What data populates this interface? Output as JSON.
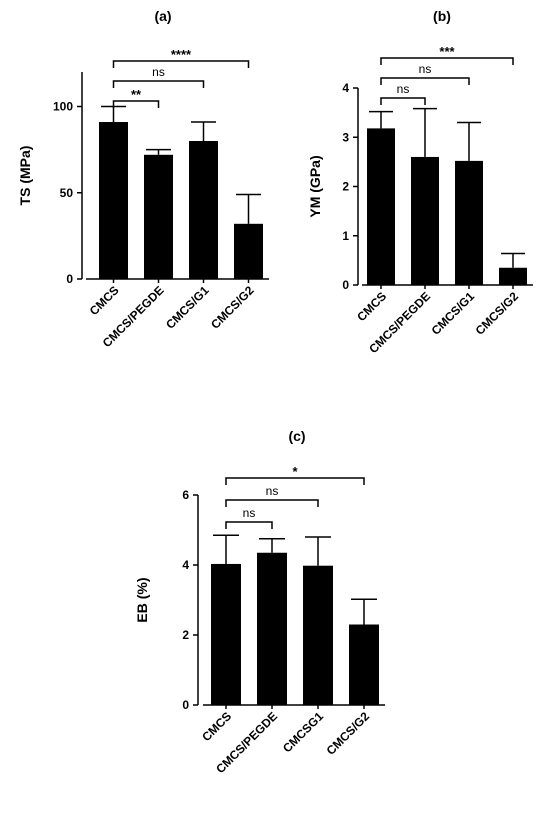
{
  "chart_data": [
    {
      "type": "bar",
      "panel": "(a)",
      "ylabel": "TS (MPa)",
      "ylim": [
        0,
        120
      ],
      "yticks": [
        0,
        50,
        100
      ],
      "categories": [
        "CMCS",
        "CMCS/PEGDE",
        "CMCS/G1",
        "CMCS/G2"
      ],
      "values": [
        91,
        72,
        80,
        32
      ],
      "errors": [
        9,
        3,
        11,
        17
      ],
      "significance": [
        {
          "from": 0,
          "to": 1,
          "label": "**"
        },
        {
          "from": 0,
          "to": 2,
          "label": "ns"
        },
        {
          "from": 0,
          "to": 3,
          "label": "****"
        }
      ]
    },
    {
      "type": "bar",
      "panel": "(b)",
      "ylabel": "YM (GPa)",
      "ylim": [
        0,
        4
      ],
      "yticks": [
        0,
        1,
        2,
        3,
        4
      ],
      "categories": [
        "CMCS",
        "CMCS/PEGDE",
        "CMCS/G1",
        "CMCS/G2"
      ],
      "values": [
        3.18,
        2.6,
        2.52,
        0.35
      ],
      "errors": [
        0.34,
        0.98,
        0.78,
        0.29
      ],
      "significance": [
        {
          "from": 0,
          "to": 1,
          "label": "ns"
        },
        {
          "from": 0,
          "to": 2,
          "label": "ns"
        },
        {
          "from": 0,
          "to": 3,
          "label": "***"
        }
      ]
    },
    {
      "type": "bar",
      "panel": "(c)",
      "ylabel": "EB (%)",
      "ylim": [
        0,
        6
      ],
      "yticks": [
        0,
        2,
        4,
        6
      ],
      "categories": [
        "CMCS",
        "CMCS/PEGDE",
        "CMCSG1",
        "CMCS/G2"
      ],
      "values": [
        4.03,
        4.35,
        3.98,
        2.3
      ],
      "errors": [
        0.82,
        0.4,
        0.82,
        0.72
      ],
      "significance": [
        {
          "from": 0,
          "to": 1,
          "label": "ns"
        },
        {
          "from": 0,
          "to": 2,
          "label": "ns"
        },
        {
          "from": 0,
          "to": 3,
          "label": "*"
        }
      ]
    }
  ]
}
